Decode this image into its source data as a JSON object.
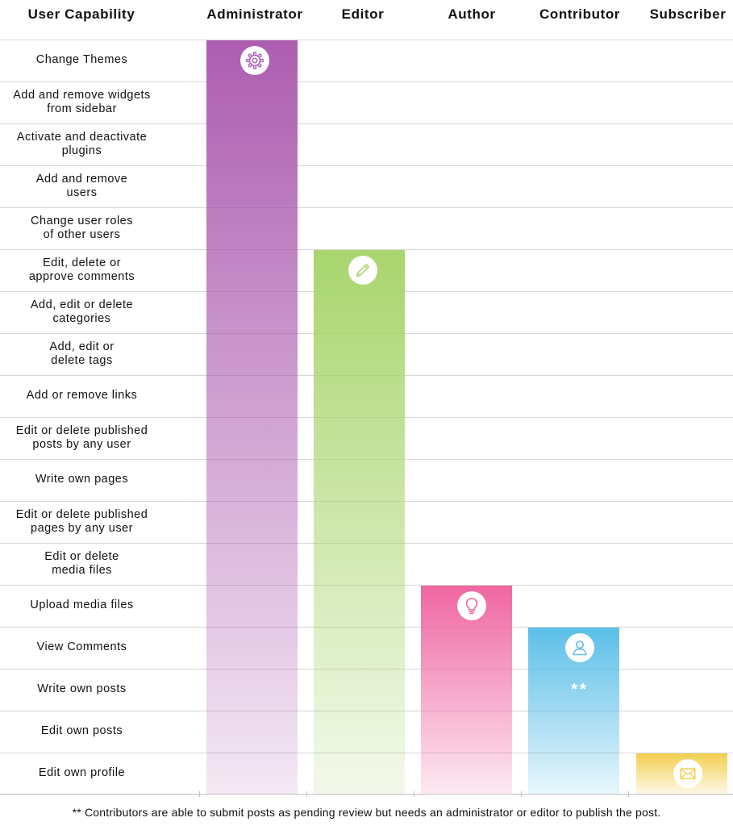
{
  "chart_data": {
    "type": "bar",
    "title": "",
    "category_header": "User Capability",
    "capabilities": [
      "Change Themes",
      "Add and remove widgets\nfrom sidebar",
      "Activate and deactivate\nplugins",
      "Add and remove\nusers",
      "Change user roles\nof other users",
      "Edit, delete or\napprove comments",
      "Add, edit or delete\ncategories",
      "Add, edit or\ndelete tags",
      "Add or remove links",
      "Edit or delete published\nposts by any user",
      "Write own pages",
      "Edit or delete published\npages by any user",
      "Edit or delete\nmedia files",
      "Upload media files",
      "View Comments",
      "Write own posts",
      "Edit own posts",
      "Edit own profile"
    ],
    "roles": [
      {
        "name": "Administrator",
        "capabilities_count": 18,
        "starts_at": "Change Themes",
        "color": "#ad5db0",
        "icon": "gear-icon"
      },
      {
        "name": "Editor",
        "capabilities_count": 13,
        "starts_at": "Edit, delete or\napprove comments",
        "color": "#a9d56d",
        "icon": "pencil-icon"
      },
      {
        "name": "Author",
        "capabilities_count": 5,
        "starts_at": "Upload media files",
        "color": "#ef66a0",
        "icon": "lightbulb-icon"
      },
      {
        "name": "Contributor",
        "capabilities_count": 4,
        "starts_at": "View Comments",
        "color": "#5bbfe8",
        "icon": "user-icon",
        "note_marker": "**"
      },
      {
        "name": "Subscriber",
        "capabilities_count": 1,
        "starts_at": "Edit own profile",
        "color": "#f2cf4e",
        "icon": "envelope-icon"
      }
    ],
    "footnote": "** Contributors are able to submit posts as pending review but needs an administrator or editor to publish the post."
  }
}
